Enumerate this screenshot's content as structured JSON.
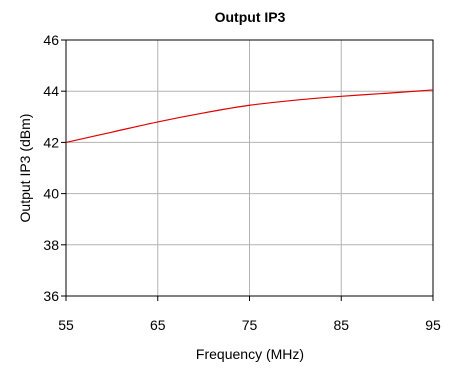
{
  "chart_data": {
    "type": "line",
    "title": "Output IP3",
    "xlabel": "Frequency (MHz)",
    "ylabel": "Output IP3 (dBm)",
    "xlim": [
      55,
      95
    ],
    "ylim": [
      36,
      46
    ],
    "xticks": [
      55,
      65,
      75,
      85,
      95
    ],
    "yticks": [
      36,
      38,
      40,
      42,
      44,
      46
    ],
    "x_tick_labels": [
      "55",
      "65",
      "75",
      "85",
      "95"
    ],
    "y_tick_labels": [
      "36",
      "38",
      "40",
      "42",
      "44",
      "46"
    ],
    "grid": true,
    "series": [
      {
        "x": [
          55,
          60,
          65,
          70,
          75,
          80,
          85,
          90,
          95
        ],
        "y": [
          42.0,
          42.4,
          42.8,
          43.15,
          43.45,
          43.65,
          43.8,
          43.92,
          44.05
        ]
      }
    ]
  },
  "colors": {
    "series_line": "#e00000",
    "grid": "#b3b3b3",
    "plot_border": "#000000"
  }
}
